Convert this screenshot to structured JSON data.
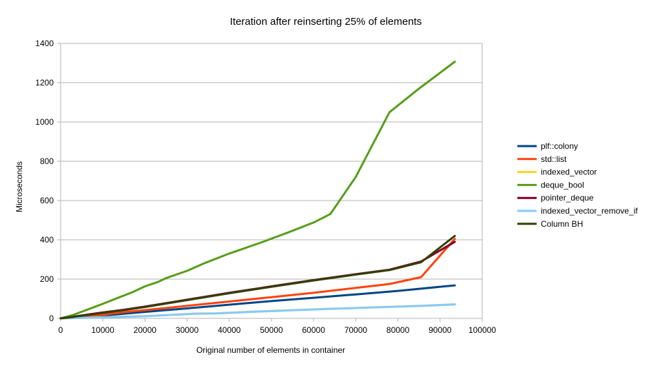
{
  "chart_data": {
    "type": "line",
    "title": "Iteration after reinserting 25% of elements",
    "xlabel": "Original number of elements in container",
    "ylabel": "Microseconds",
    "xlim": [
      0,
      100000
    ],
    "ylim": [
      0,
      1400
    ],
    "xticks": [
      0,
      10000,
      20000,
      30000,
      40000,
      50000,
      60000,
      70000,
      80000,
      90000,
      100000
    ],
    "yticks": [
      0,
      200,
      400,
      600,
      800,
      1000,
      1200,
      1400
    ],
    "grid": "horizontal",
    "legend_position": "right",
    "series": [
      {
        "name": "plf::colony",
        "color": "#004586",
        "points": [
          [
            0,
            0
          ],
          [
            2000,
            3
          ],
          [
            6000,
            8
          ],
          [
            10000,
            14
          ],
          [
            15000,
            24
          ],
          [
            20000,
            33
          ],
          [
            30000,
            51
          ],
          [
            40000,
            70
          ],
          [
            50000,
            88
          ],
          [
            60000,
            105
          ],
          [
            70000,
            122
          ],
          [
            80000,
            140
          ],
          [
            93500,
            168
          ]
        ]
      },
      {
        "name": "std::list",
        "color": "#ff420e",
        "points": [
          [
            0,
            0
          ],
          [
            2000,
            3
          ],
          [
            6000,
            11
          ],
          [
            10000,
            19
          ],
          [
            15000,
            32
          ],
          [
            20000,
            42
          ],
          [
            30000,
            64
          ],
          [
            40000,
            86
          ],
          [
            50000,
            108
          ],
          [
            60000,
            130
          ],
          [
            70000,
            155
          ],
          [
            78000,
            175
          ],
          [
            85500,
            210
          ],
          [
            93500,
            405
          ]
        ]
      },
      {
        "name": "indexed_vector",
        "color": "#ffd320",
        "points": [
          [
            0,
            0
          ],
          [
            2000,
            1
          ],
          [
            6000,
            3
          ],
          [
            10000,
            6
          ],
          [
            15000,
            9
          ],
          [
            20000,
            12
          ],
          [
            25000,
            17
          ],
          [
            32000,
            25
          ],
          [
            37000,
            26
          ],
          [
            45000,
            34
          ],
          [
            55000,
            42
          ],
          [
            65000,
            50
          ],
          [
            75000,
            57
          ],
          [
            85000,
            64
          ],
          [
            93500,
            72
          ]
        ]
      },
      {
        "name": "deque_bool",
        "color": "#579d1c",
        "points": [
          [
            0,
            0
          ],
          [
            3000,
            18
          ],
          [
            7000,
            50
          ],
          [
            10000,
            74
          ],
          [
            14000,
            108
          ],
          [
            17000,
            133
          ],
          [
            20000,
            163
          ],
          [
            23000,
            185
          ],
          [
            25000,
            205
          ],
          [
            30000,
            242
          ],
          [
            34000,
            280
          ],
          [
            40000,
            330
          ],
          [
            48000,
            390
          ],
          [
            54000,
            438
          ],
          [
            60000,
            488
          ],
          [
            64000,
            532
          ],
          [
            70000,
            720
          ],
          [
            78000,
            1050
          ],
          [
            85000,
            1170
          ],
          [
            93500,
            1307
          ]
        ]
      },
      {
        "name": "pointer_deque",
        "color": "#7e0021",
        "points": [
          [
            0,
            0
          ],
          [
            2000,
            6
          ],
          [
            6000,
            18
          ],
          [
            10000,
            30
          ],
          [
            15000,
            44
          ],
          [
            20000,
            60
          ],
          [
            30000,
            95
          ],
          [
            40000,
            130
          ],
          [
            50000,
            163
          ],
          [
            60000,
            195
          ],
          [
            70000,
            225
          ],
          [
            78000,
            248
          ],
          [
            85500,
            290
          ],
          [
            93500,
            390
          ]
        ]
      },
      {
        "name": "indexed_vector_remove_if",
        "color": "#83caff",
        "points": [
          [
            0,
            0
          ],
          [
            2000,
            1
          ],
          [
            6000,
            3
          ],
          [
            10000,
            5
          ],
          [
            15000,
            8
          ],
          [
            20000,
            11
          ],
          [
            25000,
            16
          ],
          [
            32000,
            24
          ],
          [
            37000,
            25
          ],
          [
            45000,
            33
          ],
          [
            55000,
            41
          ],
          [
            65000,
            49
          ],
          [
            75000,
            56
          ],
          [
            85000,
            63
          ],
          [
            93500,
            71
          ]
        ]
      },
      {
        "name": "Column BH",
        "color": "#314004",
        "points": [
          [
            0,
            0
          ],
          [
            2000,
            5
          ],
          [
            6000,
            16
          ],
          [
            10000,
            28
          ],
          [
            15000,
            42
          ],
          [
            20000,
            58
          ],
          [
            30000,
            93
          ],
          [
            40000,
            128
          ],
          [
            50000,
            161
          ],
          [
            60000,
            193
          ],
          [
            70000,
            223
          ],
          [
            78000,
            246
          ],
          [
            85500,
            286
          ],
          [
            93500,
            420
          ]
        ]
      }
    ]
  }
}
